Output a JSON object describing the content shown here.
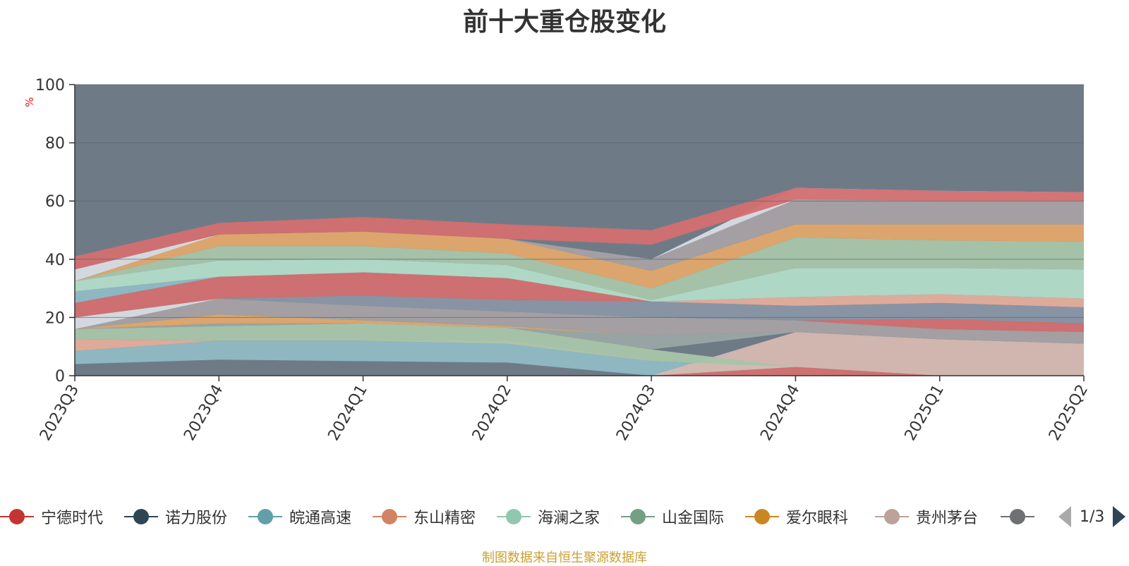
{
  "chart_data": {
    "type": "area",
    "title": "前十大重仓股变化",
    "ylabel": "%",
    "ylim": [
      0,
      100
    ],
    "yticks": [
      0,
      20,
      40,
      60,
      80,
      100
    ],
    "categories": [
      "2023Q3",
      "2023Q4",
      "2024Q1",
      "2024Q2",
      "2024Q3",
      "2024Q4",
      "2025Q1",
      "2025Q2"
    ],
    "grid": true,
    "background_color": "#6e7b87",
    "bands": [
      {
        "color": "#6e7b87",
        "bottom": [
          0,
          0,
          0,
          0,
          0,
          0,
          0,
          0
        ],
        "top": [
          4,
          5.5,
          5,
          4.5,
          0,
          0,
          0,
          0
        ]
      },
      {
        "color": "#8fbbc4",
        "bottom": [
          4,
          5.5,
          5,
          4.5,
          0,
          0,
          0,
          0
        ],
        "top": [
          8.5,
          12,
          12,
          11,
          5,
          3,
          0,
          0
        ]
      },
      {
        "color": "#d5b9b1",
        "bottom": [
          0,
          0,
          0,
          0,
          0,
          3,
          0,
          0
        ],
        "top": [
          0,
          0,
          0,
          0,
          0,
          15,
          12.5,
          11
        ]
      },
      {
        "color": "#d26d6d",
        "bottom": [
          0,
          0,
          0,
          0,
          0,
          0,
          0,
          0
        ],
        "top": [
          0,
          0,
          0,
          0,
          0,
          3,
          0,
          0
        ]
      },
      {
        "color": "#e4ad9b",
        "bottom": [
          8.5,
          12,
          12,
          11,
          5,
          3,
          0,
          0
        ],
        "top": [
          12.5,
          12,
          12,
          12,
          5,
          3,
          0,
          0
        ]
      },
      {
        "color": "#a8c5aa",
        "bottom": [
          12.5,
          12,
          12,
          11,
          5,
          3,
          0,
          0
        ],
        "top": [
          16,
          17,
          18,
          16.5,
          9,
          3,
          0,
          0
        ]
      },
      {
        "color": "#9aa7a4",
        "bottom": [
          16,
          17,
          18,
          16.5,
          9,
          15,
          12.5,
          11
        ],
        "top": [
          16,
          18,
          18,
          16.5,
          14,
          15,
          12.5,
          11
        ]
      },
      {
        "color": "#e2a86b",
        "bottom": [
          16,
          18,
          18,
          16.5,
          14,
          15,
          12.5,
          11
        ],
        "top": [
          16,
          21,
          19,
          17,
          14,
          15,
          12.5,
          11
        ]
      },
      {
        "color": "#a5a1a3",
        "bottom": [
          16,
          21,
          19,
          17,
          14,
          15,
          12.5,
          11
        ],
        "top": [
          16,
          26.5,
          24,
          22,
          20,
          19,
          16,
          15
        ]
      },
      {
        "color": "#d36f70",
        "bottom": [
          16,
          26.5,
          24,
          22,
          20,
          19,
          16,
          15
        ],
        "top": [
          16,
          26.5,
          24,
          22,
          20,
          19,
          19.5,
          18
        ]
      },
      {
        "color": "#8996a5",
        "bottom": [
          16,
          26.5,
          24,
          22,
          20,
          19,
          19.5,
          18
        ],
        "top": [
          16,
          26.5,
          27.5,
          26,
          25.5,
          24,
          25,
          23.5
        ]
      },
      {
        "color": "#e4ad9b",
        "bottom": [
          16,
          26.5,
          27.5,
          26,
          25.5,
          24,
          25,
          23.5
        ],
        "top": [
          16,
          26.5,
          27.5,
          26,
          25.5,
          27,
          28,
          26.5
        ]
      },
      {
        "color": "#d8dde3",
        "bottom": [
          16,
          26.5,
          27.5,
          26,
          25.5,
          27,
          28,
          26.5
        ],
        "top": [
          20,
          26.5,
          27.5,
          26,
          25.5,
          27,
          28,
          26.5
        ]
      },
      {
        "color": "#d36f70",
        "bottom": [
          20,
          26.5,
          27.5,
          26,
          25.5,
          27,
          28,
          26.5
        ],
        "top": [
          25,
          34,
          35.5,
          33.5,
          25.5,
          27,
          28,
          26.5
        ]
      },
      {
        "color": "#8fbbc4",
        "bottom": [
          25,
          34,
          35.5,
          33.5,
          25.5,
          27,
          28,
          26.5
        ],
        "top": [
          29,
          34,
          35.5,
          33.5,
          25.5,
          27,
          28,
          26.5
        ]
      },
      {
        "color": "#b2dcc8",
        "bottom": [
          29,
          34,
          35.5,
          33.5,
          25.5,
          27,
          28,
          26.5
        ],
        "top": [
          32.5,
          39.5,
          40,
          38,
          26,
          37,
          37,
          36.5
        ]
      },
      {
        "color": "#a8c5aa",
        "bottom": [
          32.5,
          39.5,
          40,
          38,
          26,
          37,
          37,
          36.5
        ],
        "top": [
          32.5,
          44.5,
          44.5,
          42,
          30,
          47.5,
          46.5,
          46
        ]
      },
      {
        "color": "#e2a86b",
        "bottom": [
          32.5,
          44.5,
          44.5,
          42,
          30,
          47.5,
          46.5,
          46
        ],
        "top": [
          32.5,
          48.5,
          49.5,
          47,
          36,
          52,
          52,
          52
        ]
      },
      {
        "color": "#a5a1a3",
        "bottom": [
          32.5,
          48.5,
          49.5,
          47,
          36,
          52,
          52,
          52
        ],
        "top": [
          32.5,
          48.5,
          49.5,
          47,
          40,
          60.5,
          60,
          60
        ]
      },
      {
        "color": "#d8dde3",
        "bottom": [
          32.5,
          48.5,
          49.5,
          47,
          40,
          60.5,
          60,
          60
        ],
        "top": [
          36.5,
          48.5,
          49.5,
          47,
          40,
          64.5,
          63.5,
          63
        ]
      },
      {
        "color": "#d36f70",
        "bottom": [
          36.5,
          48.5,
          49.5,
          47,
          45,
          60.5,
          60,
          60
        ],
        "top": [
          41,
          52.5,
          54.5,
          52,
          50,
          64.5,
          63.5,
          63
        ]
      }
    ],
    "legend": [
      {
        "name": "宁德时代",
        "color": "#c23531"
      },
      {
        "name": "诺力股份",
        "color": "#2f4554"
      },
      {
        "name": "皖通高速",
        "color": "#61a0a8"
      },
      {
        "name": "东山精密",
        "color": "#d48265"
      },
      {
        "name": "海澜之家",
        "color": "#91c7ae"
      },
      {
        "name": "山金国际",
        "color": "#749f83"
      },
      {
        "name": "爱尔眼科",
        "color": "#ca8622"
      },
      {
        "name": "贵州茅台",
        "color": "#bda29a"
      },
      {
        "name": "",
        "color": "#6e7074"
      }
    ],
    "legend_position": "bottom",
    "legend_page": "1/3"
  },
  "source_note": "制图数据来自恒生聚源数据库"
}
